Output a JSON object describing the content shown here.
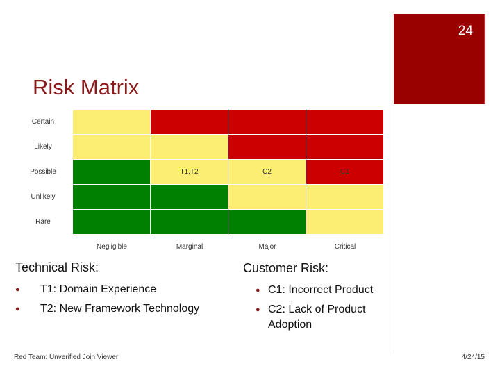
{
  "header": {
    "page_number": "24",
    "title": "Risk Matrix"
  },
  "matrix": {
    "columns": [
      "Negligible",
      "Marginal",
      "Major",
      "Critical"
    ],
    "rows": [
      {
        "label": "Certain",
        "cells": [
          {
            "color": "#fbee73"
          },
          {
            "color": "#cc0000"
          },
          {
            "color": "#cc0000"
          },
          {
            "color": "#cc0000"
          }
        ]
      },
      {
        "label": "Likely",
        "cells": [
          {
            "color": "#fbee73"
          },
          {
            "color": "#fbee73"
          },
          {
            "color": "#cc0000"
          },
          {
            "color": "#cc0000"
          }
        ]
      },
      {
        "label": "Possible",
        "cells": [
          {
            "color": "#008000"
          },
          {
            "color": "#fbee73",
            "text": "T1,T2"
          },
          {
            "color": "#fbee73",
            "text": "C2"
          },
          {
            "color": "#cc0000",
            "text": "C1"
          }
        ]
      },
      {
        "label": "Unlikely",
        "cells": [
          {
            "color": "#008000"
          },
          {
            "color": "#008000"
          },
          {
            "color": "#fbee73"
          },
          {
            "color": "#fbee73"
          }
        ]
      },
      {
        "label": "Rare",
        "cells": [
          {
            "color": "#008000"
          },
          {
            "color": "#008000"
          },
          {
            "color": "#008000"
          },
          {
            "color": "#fbee73"
          }
        ]
      }
    ]
  },
  "sections": [
    {
      "heading": "Technical Risk:",
      "items": [
        "T1: Domain Experience",
        "T2: New Framework Technology"
      ]
    },
    {
      "heading": "Customer Risk:",
      "items": [
        "C1: Incorrect Product",
        "C2: Lack of Product Adoption"
      ]
    }
  ],
  "footer": {
    "left": "Red Team: Unverified Join Viewer",
    "right": "4/24/15"
  }
}
